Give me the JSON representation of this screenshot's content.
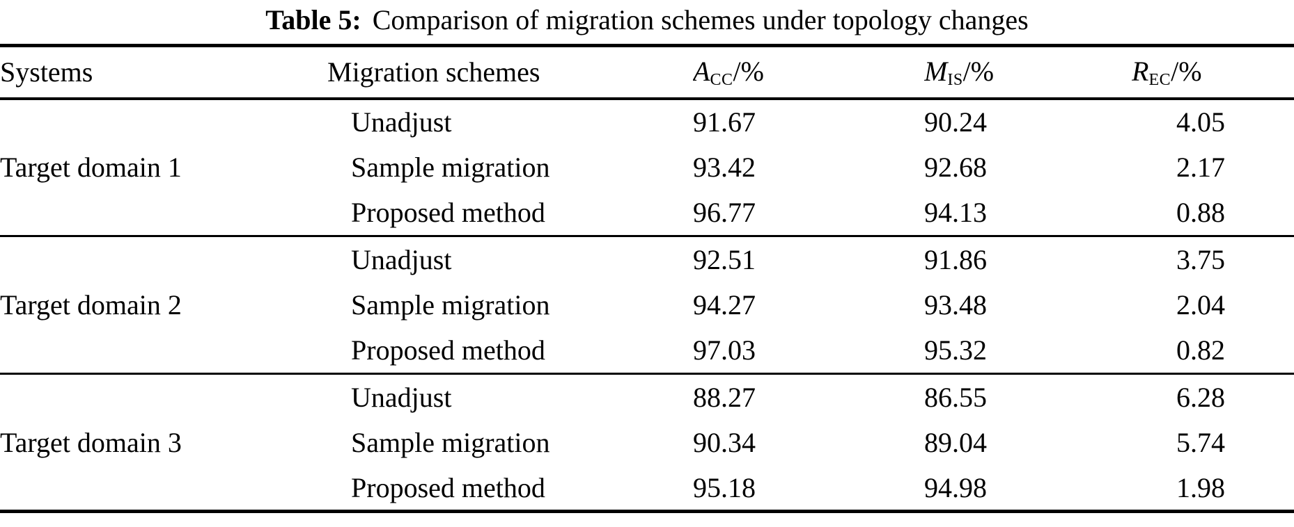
{
  "title": {
    "label": "Table 5:",
    "text": "Comparison of migration schemes under topology changes"
  },
  "table": {
    "columns": {
      "systems": "Systems",
      "schemes": "Migration schemes",
      "acc": {
        "base": "A",
        "sub": "CC",
        "suffix": "/%"
      },
      "mis": {
        "base": "M",
        "sub": "IS",
        "suffix": "/%"
      },
      "rec": {
        "base": "R",
        "sub": "EC",
        "suffix": "/%"
      }
    },
    "groups": [
      {
        "system": "Target domain 1",
        "rows": [
          {
            "scheme": "Unadjust",
            "acc": "91.67",
            "mis": "90.24",
            "rec": "4.05"
          },
          {
            "scheme": "Sample migration",
            "acc": "93.42",
            "mis": "92.68",
            "rec": "2.17"
          },
          {
            "scheme": "Proposed method",
            "acc": "96.77",
            "mis": "94.13",
            "rec": "0.88"
          }
        ]
      },
      {
        "system": "Target domain 2",
        "rows": [
          {
            "scheme": "Unadjust",
            "acc": "92.51",
            "mis": "91.86",
            "rec": "3.75"
          },
          {
            "scheme": "Sample migration",
            "acc": "94.27",
            "mis": "93.48",
            "rec": "2.04"
          },
          {
            "scheme": "Proposed method",
            "acc": "97.03",
            "mis": "95.32",
            "rec": "0.82"
          }
        ]
      },
      {
        "system": "Target domain 3",
        "rows": [
          {
            "scheme": "Unadjust",
            "acc": "88.27",
            "mis": "86.55",
            "rec": "6.28"
          },
          {
            "scheme": "Sample migration",
            "acc": "90.34",
            "mis": "89.04",
            "rec": "5.74"
          },
          {
            "scheme": "Proposed method",
            "acc": "95.18",
            "mis": "94.98",
            "rec": "1.98"
          }
        ]
      }
    ]
  }
}
